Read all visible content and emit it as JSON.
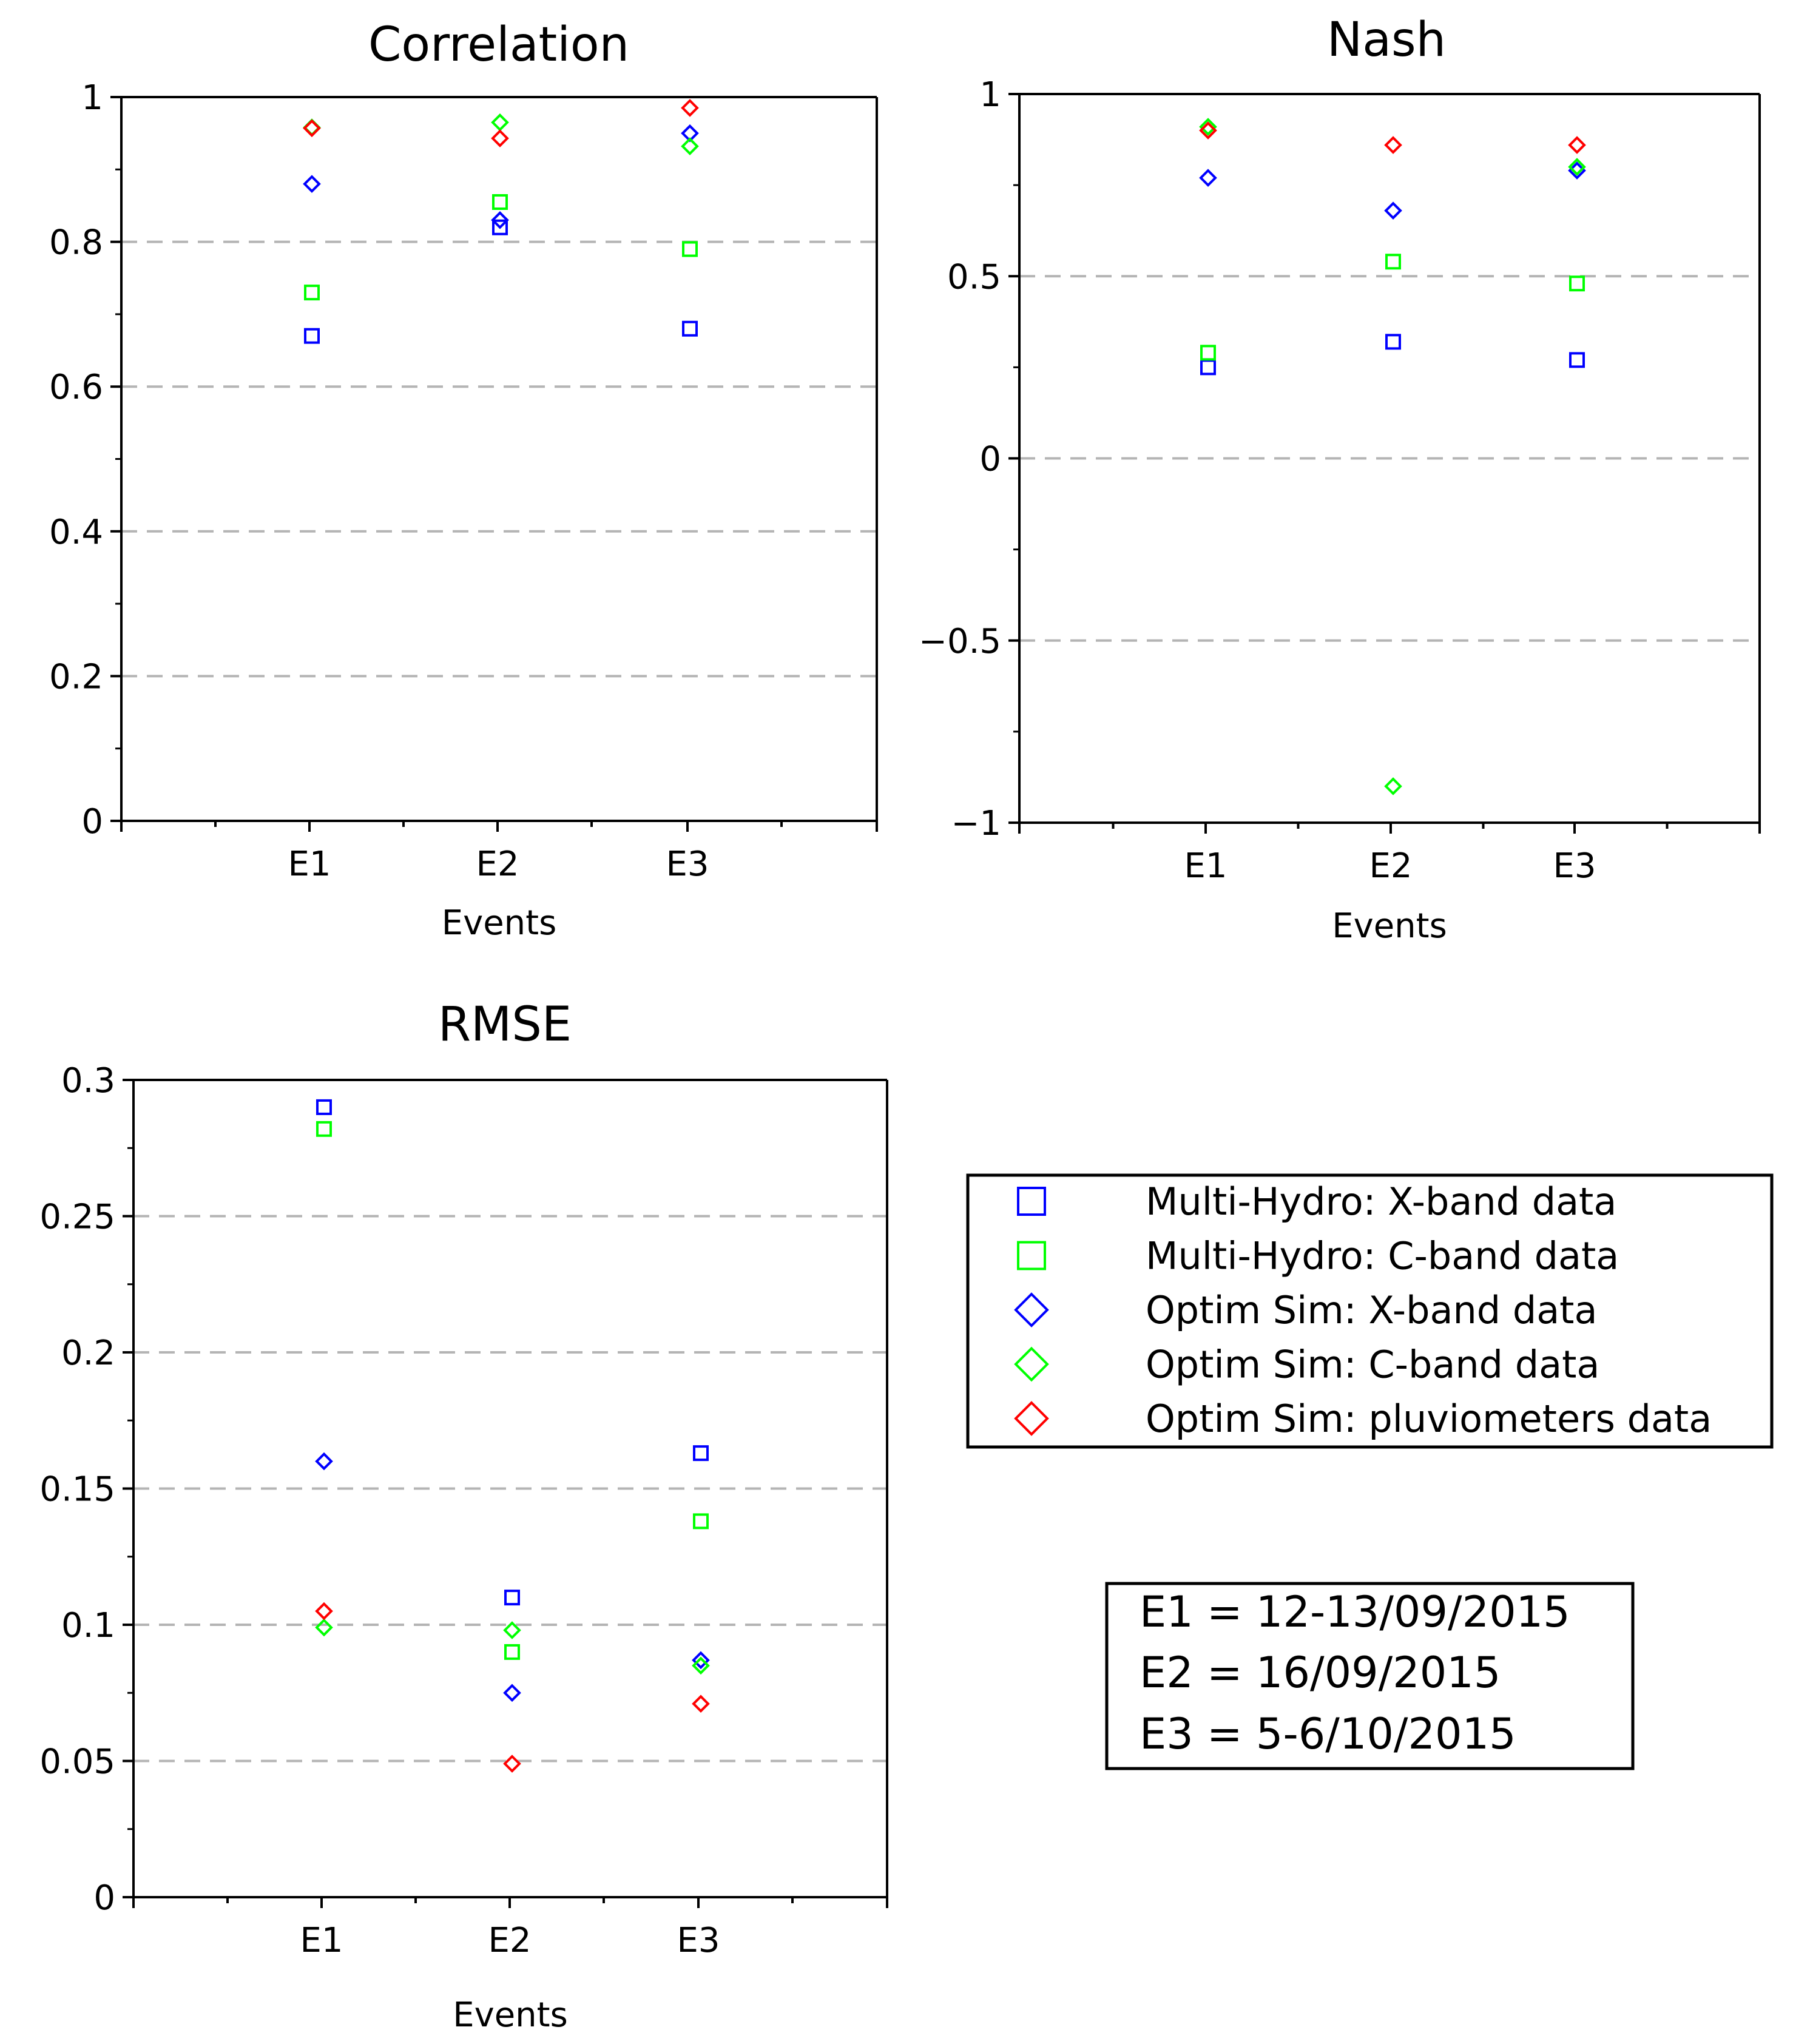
{
  "chart_data": [
    {
      "type": "scatter",
      "id": "correlation",
      "title": "Correlation",
      "xlabel": "Events",
      "ylabel": "",
      "categories": [
        "E1",
        "E2",
        "E3"
      ],
      "ylim": [
        0,
        1
      ],
      "yticks": [
        0,
        0.2,
        0.4,
        0.6,
        0.8,
        1
      ],
      "ytick_labels": [
        "0",
        "0.2",
        "0.4",
        "0.6",
        "0.8",
        "1"
      ],
      "grid": true,
      "series": [
        {
          "name": "Multi-Hydro: X-band data",
          "marker": "square",
          "color": "#0000ff",
          "values": [
            0.67,
            0.82,
            0.68
          ]
        },
        {
          "name": "Multi-Hydro: C-band data",
          "marker": "square",
          "color": "#00ff00",
          "values": [
            0.73,
            0.855,
            0.79
          ]
        },
        {
          "name": "Optim Sim: X-band data",
          "marker": "diamond",
          "color": "#0000ff",
          "values": [
            0.88,
            0.83,
            0.95
          ]
        },
        {
          "name": "Optim Sim: C-band data",
          "marker": "diamond",
          "color": "#00ff00",
          "values": [
            0.958,
            0.965,
            0.932
          ]
        },
        {
          "name": "Optim Sim: pluviometers data",
          "marker": "diamond",
          "color": "#ff0000",
          "values": [
            0.957,
            0.943,
            0.985
          ]
        }
      ]
    },
    {
      "type": "scatter",
      "id": "nash",
      "title": "Nash",
      "xlabel": "Events",
      "ylabel": "",
      "categories": [
        "E1",
        "E2",
        "E3"
      ],
      "ylim": [
        -1,
        1
      ],
      "yticks": [
        -1,
        -0.5,
        0,
        0.5,
        1
      ],
      "ytick_labels": [
        "−1",
        "−0.5",
        "0",
        "0.5",
        "1"
      ],
      "grid": true,
      "series": [
        {
          "name": "Multi-Hydro: X-band data",
          "marker": "square",
          "color": "#0000ff",
          "values": [
            0.25,
            0.32,
            0.27
          ]
        },
        {
          "name": "Multi-Hydro: C-band data",
          "marker": "square",
          "color": "#00ff00",
          "values": [
            0.29,
            0.54,
            0.48
          ]
        },
        {
          "name": "Optim Sim: X-band data",
          "marker": "diamond",
          "color": "#0000ff",
          "values": [
            0.77,
            0.68,
            0.79
          ]
        },
        {
          "name": "Optim Sim: C-band data",
          "marker": "diamond",
          "color": "#00ff00",
          "values": [
            0.91,
            -0.9,
            0.8
          ]
        },
        {
          "name": "Optim Sim: pluviometers data",
          "marker": "diamond",
          "color": "#ff0000",
          "values": [
            0.9,
            0.86,
            0.86
          ]
        }
      ]
    },
    {
      "type": "scatter",
      "id": "rmse",
      "title": "RMSE",
      "xlabel": "Events",
      "ylabel": "",
      "categories": [
        "E1",
        "E2",
        "E3"
      ],
      "ylim": [
        0,
        0.3
      ],
      "yticks": [
        0,
        0.05,
        0.1,
        0.15,
        0.2,
        0.25,
        0.3
      ],
      "ytick_labels": [
        "0",
        "0.05",
        "0.1",
        "0.15",
        "0.2",
        "0.25",
        "0.3"
      ],
      "grid": true,
      "series": [
        {
          "name": "Multi-Hydro: X-band data",
          "marker": "square",
          "color": "#0000ff",
          "values": [
            0.29,
            0.11,
            0.163
          ]
        },
        {
          "name": "Multi-Hydro: C-band data",
          "marker": "square",
          "color": "#00ff00",
          "values": [
            0.282,
            0.09,
            0.138
          ]
        },
        {
          "name": "Optim Sim: X-band data",
          "marker": "diamond",
          "color": "#0000ff",
          "values": [
            0.16,
            0.075,
            0.087
          ]
        },
        {
          "name": "Optim Sim: C-band data",
          "marker": "diamond",
          "color": "#00ff00",
          "values": [
            0.099,
            0.098,
            0.085
          ]
        },
        {
          "name": "Optim Sim: pluviometers data",
          "marker": "diamond",
          "color": "#ff0000",
          "values": [
            0.105,
            0.049,
            0.071
          ]
        }
      ]
    }
  ],
  "legend": {
    "entries": [
      {
        "label": "Multi-Hydro: X-band data",
        "marker": "square",
        "color": "#0000ff"
      },
      {
        "label": "Multi-Hydro: C-band data",
        "marker": "square",
        "color": "#00ff00"
      },
      {
        "label": "Optim Sim: X-band data",
        "marker": "diamond",
        "color": "#0000ff"
      },
      {
        "label": "Optim Sim: C-band data",
        "marker": "diamond",
        "color": "#00ff00"
      },
      {
        "label": "Optim Sim: pluviometers data",
        "marker": "diamond",
        "color": "#ff0000"
      }
    ]
  },
  "events_box": {
    "lines": [
      "E1 = 12-13/09/2015",
      "E2 = 16/09/2015",
      "E3 = 5-6/10/2015"
    ]
  },
  "colors": {
    "grid": "#b4b4b4",
    "axis": "#000000"
  }
}
